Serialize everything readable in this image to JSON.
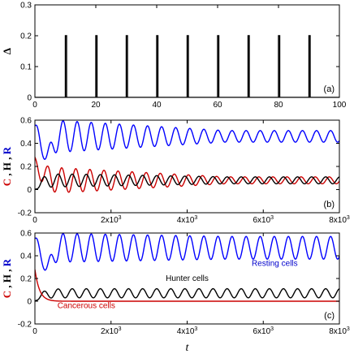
{
  "chart_data": [
    {
      "panel": "a",
      "type": "line",
      "panel_label": "(a)",
      "ylabel": "Δ",
      "xlabel": "",
      "xlim": [
        0,
        100
      ],
      "ylim": [
        0,
        0.3
      ],
      "xticks": [
        0,
        20,
        40,
        60,
        80,
        100
      ],
      "xtick_labels": [
        "0",
        "20",
        "40",
        "60",
        "80",
        "100"
      ],
      "yticks": [
        0,
        0.1,
        0.2,
        0.3
      ],
      "ytick_labels": [
        "0",
        "0.1",
        "0.2",
        "0.3"
      ],
      "series": [
        {
          "color": "#000000",
          "pulse_starts": [
            10,
            20,
            30,
            40,
            50,
            60,
            70,
            80,
            90
          ],
          "pulse_width": 0.4,
          "pulse_height": 0.2,
          "baseline": 0
        }
      ]
    },
    {
      "panel": "b",
      "type": "line",
      "panel_label": "(b)",
      "ylabel_parts": [
        {
          "text": "C",
          "color": "#cc0000"
        },
        {
          "text": " , ",
          "color": "#000000"
        },
        {
          "text": "H",
          "color": "#000000"
        },
        {
          "text": " , ",
          "color": "#000000"
        },
        {
          "text": "R",
          "color": "#0000cc"
        }
      ],
      "xlabel": "",
      "xlim": [
        0,
        8000
      ],
      "ylim": [
        -0.2,
        0.6
      ],
      "xticks": [
        0,
        2000,
        4000,
        6000,
        8000
      ],
      "xtick_labels": [
        {
          "base": "0",
          "exp": ""
        },
        {
          "base": "2x10",
          "exp": "3"
        },
        {
          "base": "4x10",
          "exp": "3"
        },
        {
          "base": "6x10",
          "exp": "3"
        },
        {
          "base": "8x10",
          "exp": "3"
        }
      ],
      "yticks": [
        -0.2,
        0,
        0.2,
        0.4,
        0.6
      ],
      "ytick_labels": [
        "-0.2",
        "0",
        "0.2",
        "0.4",
        "0.6"
      ],
      "series": [
        {
          "color": "#0000ff",
          "start": 0.55,
          "dip_first": 0.27,
          "center": 0.46,
          "amp0": 0.15,
          "amp_end": 0.05,
          "period": 370,
          "phase": 0
        },
        {
          "color": "#cc0000",
          "start": 0.28,
          "center": 0.08,
          "amp0": 0.12,
          "amp_end": 0.03,
          "period": 370,
          "phase": 0.6
        },
        {
          "color": "#000000",
          "start": 0.0,
          "center": 0.08,
          "amp0": 0.06,
          "amp_end": 0.03,
          "period": 370,
          "phase": 2.2
        }
      ]
    },
    {
      "panel": "c",
      "type": "line",
      "panel_label": "(c)",
      "ylabel_parts": [
        {
          "text": "C",
          "color": "#cc0000"
        },
        {
          "text": " , ",
          "color": "#000000"
        },
        {
          "text": "H",
          "color": "#000000"
        },
        {
          "text": " , ",
          "color": "#000000"
        },
        {
          "text": "R",
          "color": "#0000cc"
        }
      ],
      "xlabel": "t",
      "xlim": [
        0,
        8000
      ],
      "ylim": [
        -0.2,
        0.6
      ],
      "xticks": [
        0,
        2000,
        4000,
        6000,
        8000
      ],
      "xtick_labels": [
        {
          "base": "0",
          "exp": ""
        },
        {
          "base": "2x10",
          "exp": "3"
        },
        {
          "base": "4x10",
          "exp": "3"
        },
        {
          "base": "6x10",
          "exp": "3"
        },
        {
          "base": "8x10",
          "exp": "3"
        }
      ],
      "yticks": [
        -0.2,
        0,
        0.2,
        0.4,
        0.6
      ],
      "ytick_labels": [
        "-0.2",
        "0",
        "0.2",
        "0.4",
        "0.6"
      ],
      "annotations": [
        {
          "text": "Resting cells",
          "color": "#0000cc",
          "x": 6300,
          "y": 0.31
        },
        {
          "text": "Hunter cells",
          "color": "#000000",
          "x": 4000,
          "y": 0.18
        },
        {
          "text": "Cancerous cells",
          "color": "#cc0000",
          "x": 1350,
          "y": -0.06
        }
      ],
      "series": [
        {
          "name": "Resting cells",
          "color": "#0000ff",
          "start": 0.55,
          "dip_first": 0.27,
          "center": 0.47,
          "amp0": 0.13,
          "amp_end": 0.1,
          "period": 370,
          "phase": 0
        },
        {
          "name": "Hunter cells",
          "color": "#000000",
          "start": 0.0,
          "center": 0.07,
          "amp0": 0.04,
          "amp_end": 0.04,
          "period": 370,
          "phase": 2.2
        },
        {
          "name": "Cancerous cells",
          "color": "#cc0000",
          "start": 0.28,
          "center": 0.0,
          "amp0": 0.0,
          "amp_end": 0.0,
          "period": 370,
          "phase": 0,
          "decay": true
        }
      ]
    }
  ]
}
